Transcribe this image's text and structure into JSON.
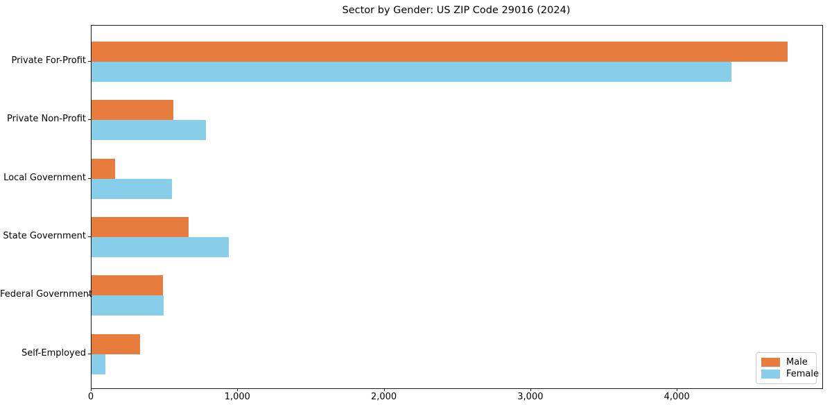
{
  "chart_data": {
    "type": "bar",
    "orientation": "horizontal",
    "title": "Sector by Gender: US ZIP Code 29016 (2024)",
    "categories": [
      "Private For-Profit",
      "Private Non-Profit",
      "Local Government",
      "State Government",
      "Federal Government",
      "Self-Employed"
    ],
    "series": [
      {
        "name": "Male",
        "color": "#e87c3c",
        "values": [
          4750,
          560,
          160,
          660,
          487,
          330
        ]
      },
      {
        "name": "Female",
        "color": "#87ceeb",
        "values": [
          4370,
          780,
          550,
          935,
          492,
          95
        ]
      }
    ],
    "xlim": [
      0,
      4988
    ],
    "xticks": {
      "values": [
        0,
        1000,
        2000,
        3000,
        4000
      ],
      "labels": [
        "0",
        "1,000",
        "2,000",
        "3,000",
        "4,000"
      ]
    },
    "grid": false,
    "legend_position": "lower right"
  }
}
